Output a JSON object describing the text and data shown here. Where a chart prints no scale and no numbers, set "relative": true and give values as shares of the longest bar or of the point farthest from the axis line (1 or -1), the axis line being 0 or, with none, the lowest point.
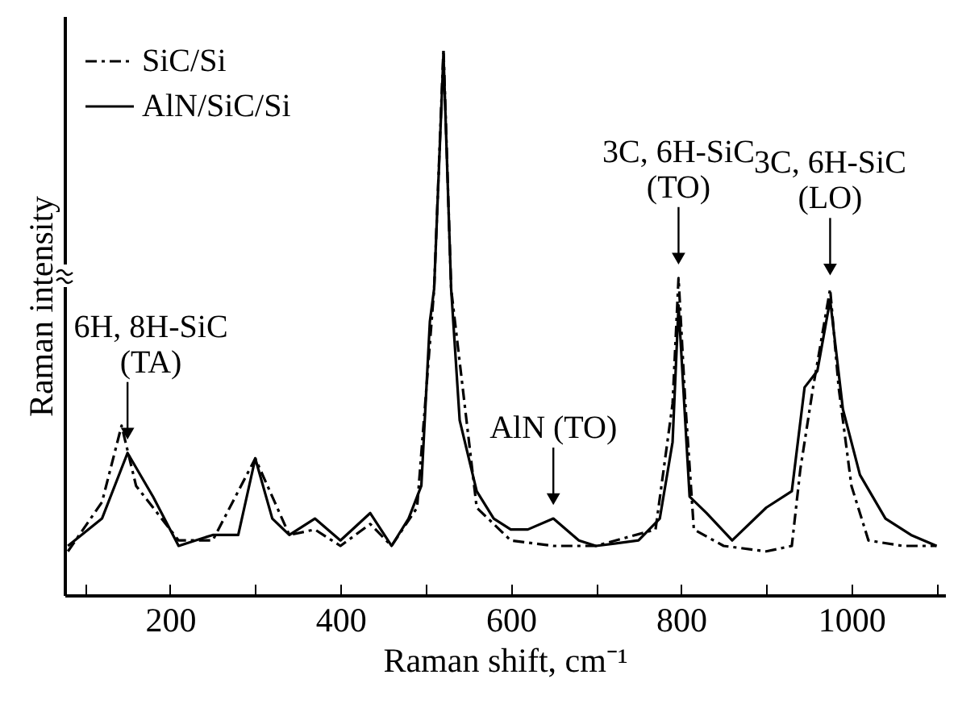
{
  "chart_data": {
    "type": "line",
    "relative": true,
    "xlabel": "Raman shift, cm⁻¹",
    "ylabel": "Raman intensity",
    "xlim": [
      76,
      1110
    ],
    "xticks": [
      {
        "value": 100,
        "label": null
      },
      200,
      {
        "value": 300,
        "label": null
      },
      400,
      {
        "value": 500,
        "label": null
      },
      600,
      {
        "value": 700,
        "label": null
      },
      800,
      {
        "value": 900,
        "label": null
      },
      1000,
      {
        "value": 1100,
        "label": null
      }
    ],
    "legend": "top left",
    "grid": false,
    "marker": "none",
    "series": [
      {
        "name": "SiC/Si",
        "color": "#000000",
        "line_style": "dashed",
        "x": [
          80,
          120,
          143,
          160,
          210,
          250,
          300,
          340,
          370,
          400,
          435,
          460,
          490,
          510,
          521,
          530,
          560,
          600,
          650,
          700,
          770,
          790,
          797,
          805,
          815,
          850,
          900,
          930,
          940,
          955,
          975,
          985,
          1000,
          1020,
          1060,
          1100
        ],
        "values": [
          0.08,
          0.17,
          0.31,
          0.2,
          0.1,
          0.1,
          0.25,
          0.11,
          0.12,
          0.09,
          0.13,
          0.09,
          0.16,
          0.56,
          1,
          0.56,
          0.16,
          0.1,
          0.09,
          0.09,
          0.12,
          0.35,
          0.58,
          0.35,
          0.12,
          0.09,
          0.08,
          0.09,
          0.23,
          0.38,
          0.56,
          0.38,
          0.2,
          0.1,
          0.09,
          0.09
        ]
      },
      {
        "name": "AlN/SiC/Si",
        "color": "#000000",
        "line_style": "solid",
        "x": [
          80,
          120,
          150,
          180,
          210,
          250,
          280,
          300,
          320,
          340,
          370,
          400,
          435,
          460,
          480,
          495,
          505,
          510,
          521,
          530,
          540,
          560,
          580,
          600,
          620,
          650,
          680,
          700,
          750,
          775,
          790,
          797,
          810,
          830,
          860,
          900,
          930,
          945,
          960,
          975,
          990,
          1010,
          1040,
          1070,
          1100
        ],
        "values": [
          0.09,
          0.14,
          0.26,
          0.18,
          0.09,
          0.11,
          0.11,
          0.25,
          0.14,
          0.11,
          0.14,
          0.1,
          0.15,
          0.09,
          0.14,
          0.2,
          0.5,
          0.56,
          0.99,
          0.56,
          0.32,
          0.19,
          0.14,
          0.12,
          0.12,
          0.14,
          0.1,
          0.09,
          0.1,
          0.14,
          0.28,
          0.53,
          0.18,
          0.15,
          0.1,
          0.16,
          0.19,
          0.38,
          0.41,
          0.54,
          0.34,
          0.22,
          0.14,
          0.11,
          0.09
        ]
      }
    ],
    "annotations": [
      {
        "text": "6H, 8H-SiC\n(TA)",
        "x": 150,
        "y": 0.26
      },
      {
        "text": "AlN (TO)",
        "x": 650,
        "y": 0.14
      },
      {
        "text": "3C, 6H-SiC\n(TO)",
        "x": 797,
        "y": 0.58
      },
      {
        "text": "3C, 6H-SiC\n(LO)",
        "x": 975,
        "y": 0.56
      }
    ]
  }
}
